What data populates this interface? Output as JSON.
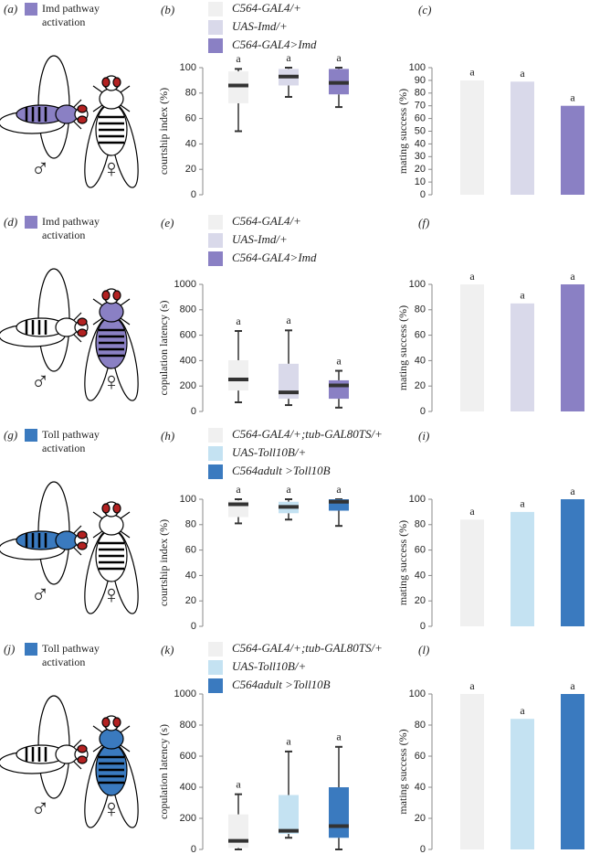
{
  "diagrams": [
    {
      "label": "(a)",
      "title": [
        "Imd pathway",
        "activation"
      ],
      "male": "♂",
      "female": "♀",
      "color": "#8a80c4",
      "highlight": "male"
    },
    {
      "label": "(d)",
      "title": [
        "Imd pathway",
        "activation"
      ],
      "male": "♂",
      "female": "♀",
      "color": "#8a80c4",
      "highlight": "female"
    },
    {
      "label": "(g)",
      "title": [
        "Toll pathway",
        "activation"
      ],
      "male": "♂",
      "female": "♀",
      "color": "#3a7abf",
      "highlight": "male"
    },
    {
      "label": "(j)",
      "title": [
        "Toll pathway",
        "activation"
      ],
      "male": "♂",
      "female": "♀",
      "color": "#3a7abf",
      "highlight": "female"
    }
  ],
  "chart_data": [
    {
      "type": "box",
      "label": "(b)",
      "ylabel": "courtship index (%)",
      "ylim": [
        0,
        100
      ],
      "yticks": [
        0,
        20,
        40,
        60,
        80,
        100
      ],
      "series": [
        {
          "name": "C564-GAL4/+",
          "color": "#f0f0f0",
          "whislo": 50,
          "q1": 72,
          "median": 86,
          "q3": 97,
          "whishi": 99,
          "annotation": "a"
        },
        {
          "name": "UAS-Imd/+",
          "color": "#d9d9ea",
          "whislo": 77,
          "q1": 86,
          "median": 93,
          "q3": 99,
          "whishi": 100,
          "annotation": "a"
        },
        {
          "name": "C564-GAL4>Imd",
          "color": "#8a80c4",
          "whislo": 69,
          "q1": 79,
          "median": 88,
          "q3": 99,
          "whishi": 100,
          "annotation": "a"
        }
      ]
    },
    {
      "type": "bar",
      "label": "(c)",
      "ylabel": "mating success (%)",
      "ylim": [
        0,
        100
      ],
      "yticks": [
        0,
        10,
        20,
        30,
        40,
        50,
        60,
        70,
        80,
        90,
        100
      ],
      "series": [
        {
          "color": "#f0f0f0",
          "value": 90,
          "annotation": "a"
        },
        {
          "color": "#d9d9ea",
          "value": 89,
          "annotation": "a"
        },
        {
          "color": "#8a80c4",
          "value": 70,
          "annotation": "a"
        }
      ]
    },
    {
      "type": "box",
      "label": "(e)",
      "ylabel": "copulation latency (s)",
      "ylim": [
        0,
        1000
      ],
      "yticks": [
        0,
        200,
        400,
        600,
        800,
        1000
      ],
      "series": [
        {
          "name": "C564-GAL4/+",
          "color": "#f0f0f0",
          "whislo": 72,
          "q1": 165,
          "median": 252,
          "q3": 403,
          "whishi": 633,
          "annotation": "a"
        },
        {
          "name": "UAS-Imd/+",
          "color": "#d9d9ea",
          "whislo": 50,
          "q1": 100,
          "median": 150,
          "q3": 375,
          "whishi": 638,
          "annotation": "a"
        },
        {
          "name": "C564-GAL4>Imd",
          "color": "#8a80c4",
          "whislo": 30,
          "q1": 100,
          "median": 205,
          "q3": 245,
          "whishi": 320,
          "annotation": "a"
        }
      ]
    },
    {
      "type": "bar",
      "label": "(f)",
      "ylabel": "mating success (%)",
      "ylim": [
        0,
        100
      ],
      "yticks": [
        0,
        20,
        40,
        60,
        80,
        100
      ],
      "series": [
        {
          "color": "#f0f0f0",
          "value": 100,
          "annotation": "a"
        },
        {
          "color": "#d9d9ea",
          "value": 85,
          "annotation": "a"
        },
        {
          "color": "#8a80c4",
          "value": 100,
          "annotation": "a"
        }
      ]
    },
    {
      "type": "box",
      "label": "(h)",
      "ylabel": "courtship index (%)",
      "ylim": [
        0,
        100
      ],
      "yticks": [
        0,
        20,
        40,
        60,
        80,
        100
      ],
      "series": [
        {
          "name": "C564-GAL4/+;tub-GAL80TS/+",
          "color": "#f0f0f0",
          "whislo": 81,
          "q1": 86,
          "median": 96,
          "q3": 99,
          "whishi": 100,
          "annotation": "a"
        },
        {
          "name": "UAS-Toll10B/+",
          "color": "#c4e2f2",
          "whislo": 84,
          "q1": 89,
          "median": 94,
          "q3": 98,
          "whishi": 100,
          "annotation": "a"
        },
        {
          "name": "C564adult >Toll10B",
          "color": "#3a7abf",
          "whislo": 79,
          "q1": 91,
          "median": 98,
          "q3": 100,
          "whishi": 100,
          "annotation": "a"
        }
      ]
    },
    {
      "type": "bar",
      "label": "(i)",
      "ylabel": "mating success (%)",
      "ylim": [
        0,
        100
      ],
      "yticks": [
        0,
        20,
        40,
        60,
        80,
        100
      ],
      "series": [
        {
          "color": "#f0f0f0",
          "value": 84,
          "annotation": "a"
        },
        {
          "color": "#c4e2f2",
          "value": 90,
          "annotation": "a"
        },
        {
          "color": "#3a7abf",
          "value": 100,
          "annotation": "a"
        }
      ]
    },
    {
      "type": "box",
      "label": "(k)",
      "ylabel": "copulation latency (s)",
      "ylim": [
        0,
        1000
      ],
      "yticks": [
        0,
        200,
        400,
        600,
        800,
        1000
      ],
      "series": [
        {
          "name": "C564-GAL4/+;tub-GAL80TS/+",
          "color": "#f0f0f0",
          "whislo": 0,
          "q1": 10,
          "median": 55,
          "q3": 225,
          "whishi": 355,
          "annotation": "a"
        },
        {
          "name": "UAS-Toll10B/+",
          "color": "#c4e2f2",
          "whislo": 75,
          "q1": 100,
          "median": 120,
          "q3": 350,
          "whishi": 630,
          "annotation": "a"
        },
        {
          "name": "C564adult >Toll10B",
          "color": "#3a7abf",
          "whislo": 0,
          "q1": 75,
          "median": 150,
          "q3": 400,
          "whishi": 660,
          "annotation": "a"
        }
      ]
    },
    {
      "type": "bar",
      "label": "(l)",
      "ylabel": "mating success (%)",
      "ylim": [
        0,
        100
      ],
      "yticks": [
        0,
        20,
        40,
        60,
        80,
        100
      ],
      "series": [
        {
          "color": "#f0f0f0",
          "value": 100,
          "annotation": "a"
        },
        {
          "color": "#c4e2f2",
          "value": 84,
          "annotation": "a"
        },
        {
          "color": "#3a7abf",
          "value": 100,
          "annotation": "a"
        }
      ]
    }
  ]
}
